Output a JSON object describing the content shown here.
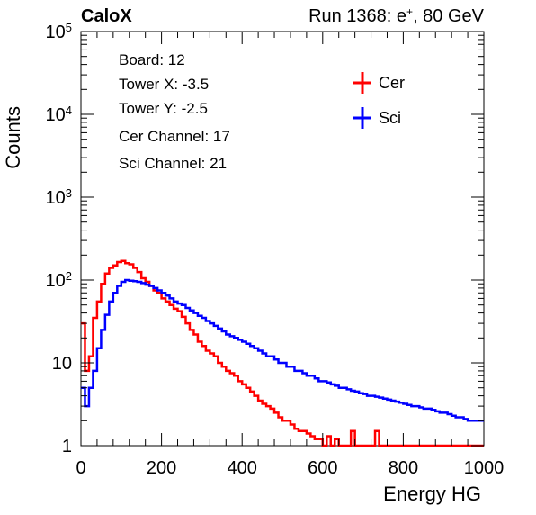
{
  "header": {
    "experiment": "CaloX",
    "run_prefix": "Run 1368: e",
    "run_sup": "+",
    "run_suffix": ", 80 GeV"
  },
  "info_box": {
    "lines": [
      "Board: 12",
      "Tower X: -3.5",
      "Tower Y: -2.5",
      "Cer Channel: 17",
      "Sci Channel: 21"
    ]
  },
  "legend": {
    "placement": "top-right",
    "entries": [
      "Cer",
      "Sci"
    ]
  },
  "colors": {
    "cer": "#ff0000",
    "sci": "#0000ff",
    "axis": "#000000"
  },
  "chart_data": {
    "type": "line",
    "title": "",
    "xlabel": "Energy HG",
    "ylabel": "Counts",
    "xlim": [
      0,
      1000
    ],
    "ylim": [
      1,
      100000
    ],
    "y_scale": "log",
    "grid": false,
    "x_ticks": [
      0,
      200,
      400,
      600,
      800,
      1000
    ],
    "x_tick_labels": [
      "0",
      "200",
      "400",
      "600",
      "800",
      "1000"
    ],
    "y_ticks": [
      1,
      10,
      100,
      1000,
      10000,
      100000
    ],
    "y_tick_labels": [
      {
        "base": "1",
        "exp": ""
      },
      {
        "base": "10",
        "exp": ""
      },
      {
        "base": "10",
        "exp": "2"
      },
      {
        "base": "10",
        "exp": "3"
      },
      {
        "base": "10",
        "exp": "4"
      },
      {
        "base": "10",
        "exp": "5"
      }
    ],
    "series": [
      {
        "name": "Cer",
        "x": [
          0,
          10,
          20,
          30,
          40,
          50,
          60,
          70,
          80,
          90,
          100,
          110,
          120,
          130,
          140,
          150,
          160,
          170,
          180,
          190,
          200,
          210,
          220,
          230,
          240,
          250,
          260,
          270,
          280,
          290,
          300,
          310,
          320,
          330,
          340,
          350,
          360,
          370,
          380,
          390,
          400,
          410,
          420,
          430,
          440,
          450,
          460,
          470,
          480,
          490,
          500,
          510,
          520,
          530,
          540,
          550,
          560,
          570,
          580,
          590,
          600,
          610,
          620,
          630,
          640,
          650,
          660,
          670,
          680,
          690,
          700,
          710,
          720,
          730,
          740,
          750,
          760,
          770,
          780,
          790,
          800,
          810,
          820,
          830,
          840,
          850,
          860,
          870,
          880,
          890,
          900,
          910,
          920,
          930,
          940,
          950,
          960,
          970,
          980,
          990
        ],
        "values": [
          30,
          8,
          12,
          35,
          55,
          90,
          120,
          140,
          150,
          165,
          170,
          160,
          155,
          140,
          125,
          105,
          95,
          85,
          75,
          70,
          60,
          55,
          50,
          45,
          42,
          36,
          30,
          25,
          22,
          18,
          16,
          14,
          13,
          12,
          10,
          9,
          8,
          7.5,
          7,
          6,
          5.5,
          5,
          4.5,
          4,
          3.5,
          3.2,
          3,
          2.8,
          2.5,
          2.2,
          2,
          2,
          1.8,
          1.6,
          1.5,
          1.5,
          1.4,
          1.3,
          1.2,
          1.2,
          1,
          1.3,
          1,
          1.2,
          1,
          1,
          1,
          1.5,
          1,
          1,
          1,
          1,
          1,
          1.5,
          1,
          1,
          1,
          1,
          1,
          1,
          1,
          1,
          1,
          1,
          1,
          1,
          1,
          1,
          1,
          1,
          1,
          1,
          1,
          1,
          1,
          1,
          1,
          1,
          1,
          1
        ]
      },
      {
        "name": "Sci",
        "x": [
          0,
          10,
          20,
          30,
          40,
          50,
          60,
          70,
          80,
          90,
          100,
          110,
          120,
          130,
          140,
          150,
          160,
          170,
          180,
          190,
          200,
          210,
          220,
          230,
          240,
          250,
          260,
          270,
          280,
          290,
          300,
          310,
          320,
          330,
          340,
          350,
          360,
          370,
          380,
          390,
          400,
          410,
          420,
          430,
          440,
          450,
          460,
          470,
          480,
          490,
          500,
          510,
          520,
          530,
          540,
          550,
          560,
          570,
          580,
          590,
          600,
          610,
          620,
          630,
          640,
          650,
          660,
          670,
          680,
          690,
          700,
          710,
          720,
          730,
          740,
          750,
          760,
          770,
          780,
          790,
          800,
          810,
          820,
          830,
          840,
          850,
          860,
          870,
          880,
          890,
          900,
          910,
          920,
          930,
          940,
          950,
          960,
          970,
          980,
          990
        ],
        "values": [
          5,
          3,
          5,
          8,
          15,
          25,
          38,
          55,
          70,
          85,
          95,
          100,
          98,
          97,
          95,
          92,
          88,
          85,
          80,
          75,
          70,
          65,
          60,
          55,
          52,
          50,
          46,
          43,
          40,
          37,
          35,
          32,
          30,
          28,
          26,
          24,
          22,
          21,
          20,
          19,
          18,
          17,
          16,
          15,
          14,
          13,
          12,
          12,
          11,
          10,
          10,
          9,
          9,
          8,
          8,
          7.5,
          7,
          7,
          6.5,
          6,
          6,
          5.8,
          5.5,
          5.3,
          5,
          5,
          4.8,
          4.6,
          4.5,
          4.3,
          4.2,
          4,
          4,
          3.9,
          3.8,
          3.7,
          3.6,
          3.5,
          3.4,
          3.3,
          3.2,
          3.1,
          3,
          3,
          2.9,
          2.8,
          2.8,
          2.7,
          2.6,
          2.5,
          2.5,
          2.4,
          2.3,
          2.2,
          2.2,
          2.1,
          2,
          2,
          2,
          2
        ]
      }
    ]
  }
}
